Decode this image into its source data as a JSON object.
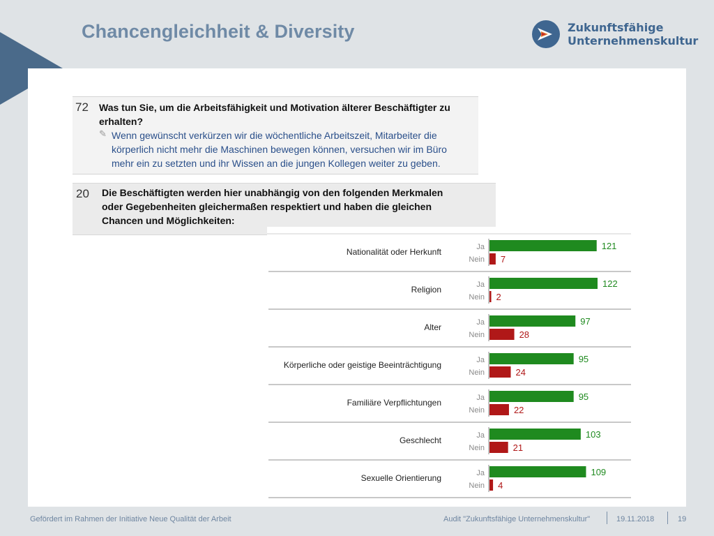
{
  "header": {
    "title": "Chancengleichheit & Diversity"
  },
  "logo": {
    "line1": "Zukunftsfähige",
    "line2": "Unternehmenskultur"
  },
  "q72": {
    "number": "72",
    "question_line1": "Was tun Sie, um die Arbeitsfähigkeit und Motivation älterer Beschäftigter zu",
    "question_line2": "erhalten?",
    "answer_line1": "Wenn gewünscht verkürzen wir die wöchentliche Arbeitszeit, Mitarbeiter die",
    "answer_line2": "körperlich nicht mehr die Maschinen bewegen können, versuchen wir im Büro",
    "answer_line3": "mehr ein zu setzten und ihr Wissen an die jungen Kollegen weiter zu geben."
  },
  "q20": {
    "number": "20",
    "line1": "Die Beschäftigten werden hier unabhängig von den folgenden Merkmalen",
    "line2": "oder Gegebenheiten gleichermaßen respektiert und haben die gleichen",
    "line3": "Chancen und Möglichkeiten:"
  },
  "chart_data": {
    "type": "bar",
    "orientation": "horizontal",
    "categories": [
      "Nationalität oder Herkunft",
      "Religion",
      "Alter",
      "Körperliche oder geistige Beeinträchtigung",
      "Familiäre Verpflichtungen",
      "Geschlecht",
      "Sexuelle Orientierung"
    ],
    "series": [
      {
        "name": "Ja",
        "color": "#1f8a1f",
        "values": [
          121,
          122,
          97,
          95,
          95,
          103,
          109
        ]
      },
      {
        "name": "Nein",
        "color": "#b01818",
        "values": [
          7,
          2,
          28,
          24,
          22,
          21,
          4
        ]
      }
    ],
    "xlim": [
      0,
      122
    ],
    "grid": false,
    "legend": "none"
  },
  "footer": {
    "left": "Gefördert im Rahmen der Initiative Neue Qualität der Arbeit",
    "audit": "Audit \"Zukunftsfähige Unternehmenskultur\"",
    "date": "19.11.2018",
    "page": "19"
  }
}
